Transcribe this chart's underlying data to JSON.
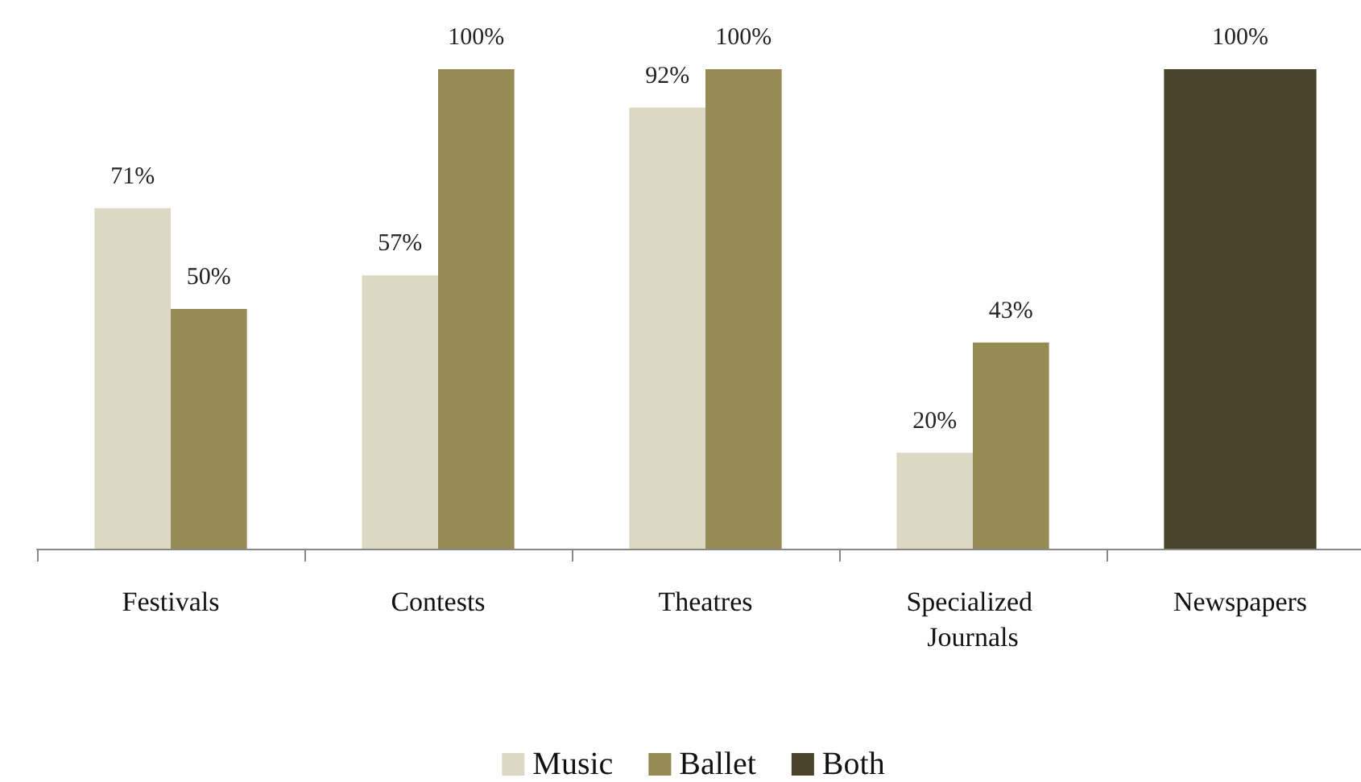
{
  "chart_data": {
    "type": "bar",
    "categories": [
      "Festivals",
      "Contests",
      "Theatres",
      "Specialized Journals",
      "Newspapers"
    ],
    "series": [
      {
        "name": "Music",
        "color": "#ddd8c3",
        "values": [
          71,
          57,
          92,
          20,
          null
        ],
        "value_labels": [
          "71%",
          "57%",
          "92%",
          "20%",
          null
        ]
      },
      {
        "name": "Ballet",
        "color": "#958b55",
        "values": [
          50,
          100,
          100,
          43,
          null
        ],
        "value_labels": [
          "50%",
          "100%",
          "100%",
          "43%",
          null
        ]
      },
      {
        "name": "Both",
        "color": "#4a432c",
        "values": [
          null,
          null,
          null,
          null,
          100
        ],
        "value_labels": [
          null,
          null,
          null,
          null,
          "100%"
        ]
      }
    ],
    "legend": "bottom",
    "grid": false,
    "tick_labels": "x"
  }
}
